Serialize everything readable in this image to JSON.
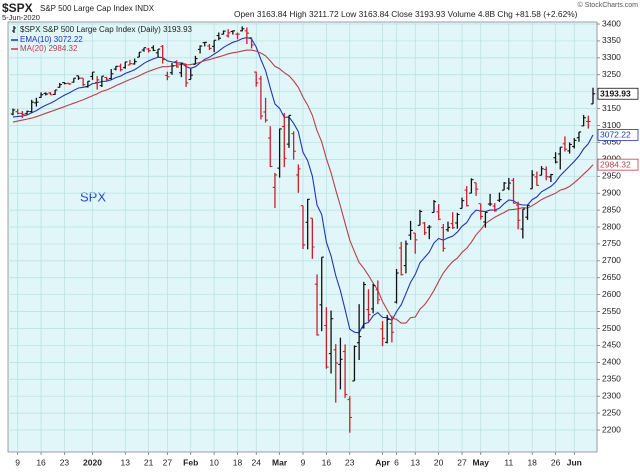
{
  "chart_data": {
    "type": "ohlc",
    "symbol": "$SPX",
    "subtitle": "S&P 500 Large Cap Index  INDX",
    "date": "5-Jun-2020",
    "quote": "Open 3163.84 High 3211.72 Low 3163.84 Close 3193.93 Volume 4.8B Chg +81.58 (+2.62%)",
    "credit": "© StockCharts.com",
    "annotation": "SPX",
    "price_name": "$SPX S&P 500 Large Cap Index (Daily)",
    "up_color": "#111111",
    "down_color": "#cc1f2a",
    "background": "#e0f6f8",
    "grid": true,
    "x": [
      "2019-12-06",
      "2019-12-09",
      "2019-12-10",
      "2019-12-11",
      "2019-12-12",
      "2019-12-13",
      "2019-12-16",
      "2019-12-17",
      "2019-12-18",
      "2019-12-19",
      "2019-12-20",
      "2019-12-23",
      "2019-12-24",
      "2019-12-26",
      "2019-12-27",
      "2019-12-30",
      "2019-12-31",
      "2020-01-02",
      "2020-01-03",
      "2020-01-06",
      "2020-01-07",
      "2020-01-08",
      "2020-01-09",
      "2020-01-10",
      "2020-01-13",
      "2020-01-14",
      "2020-01-15",
      "2020-01-16",
      "2020-01-17",
      "2020-01-21",
      "2020-01-22",
      "2020-01-23",
      "2020-01-24",
      "2020-01-27",
      "2020-01-28",
      "2020-01-29",
      "2020-01-30",
      "2020-01-31",
      "2020-02-03",
      "2020-02-04",
      "2020-02-05",
      "2020-02-06",
      "2020-02-07",
      "2020-02-10",
      "2020-02-11",
      "2020-02-12",
      "2020-02-13",
      "2020-02-14",
      "2020-02-18",
      "2020-02-19",
      "2020-02-20",
      "2020-02-21",
      "2020-02-24",
      "2020-02-25",
      "2020-02-26",
      "2020-02-27",
      "2020-02-28",
      "2020-03-02",
      "2020-03-03",
      "2020-03-04",
      "2020-03-05",
      "2020-03-06",
      "2020-03-09",
      "2020-03-10",
      "2020-03-11",
      "2020-03-12",
      "2020-03-13",
      "2020-03-16",
      "2020-03-17",
      "2020-03-18",
      "2020-03-19",
      "2020-03-20",
      "2020-03-23",
      "2020-03-24",
      "2020-03-25",
      "2020-03-26",
      "2020-03-27",
      "2020-03-30",
      "2020-03-31",
      "2020-04-01",
      "2020-04-02",
      "2020-04-03",
      "2020-04-06",
      "2020-04-07",
      "2020-04-08",
      "2020-04-09",
      "2020-04-13",
      "2020-04-14",
      "2020-04-15",
      "2020-04-16",
      "2020-04-17",
      "2020-04-20",
      "2020-04-21",
      "2020-04-22",
      "2020-04-23",
      "2020-04-24",
      "2020-04-27",
      "2020-04-28",
      "2020-04-29",
      "2020-04-30",
      "2020-05-01",
      "2020-05-04",
      "2020-05-05",
      "2020-05-06",
      "2020-05-07",
      "2020-05-08",
      "2020-05-11",
      "2020-05-12",
      "2020-05-13",
      "2020-05-14",
      "2020-05-15",
      "2020-05-18",
      "2020-05-19",
      "2020-05-20",
      "2020-05-21",
      "2020-05-22",
      "2020-05-26",
      "2020-05-27",
      "2020-05-28",
      "2020-05-29",
      "2020-06-01",
      "2020-06-02",
      "2020-06-03",
      "2020-06-04",
      "2020-06-05"
    ],
    "open": [
      3134,
      3141,
      3136,
      3135,
      3141,
      3167,
      3183,
      3195,
      3196,
      3192,
      3213,
      3227,
      3225,
      3228,
      3247,
      3240,
      3215,
      3245,
      3227,
      3218,
      3242,
      3239,
      3267,
      3275,
      3271,
      3279,
      3282,
      3302,
      3323,
      3326,
      3330,
      3315,
      3334,
      3248,
      3256,
      3289,
      3256,
      3282,
      3236,
      3281,
      3325,
      3345,
      3335,
      3334,
      3366,
      3370,
      3365,
      3378,
      3370,
      3380,
      3380,
      3360,
      3258,
      3238,
      3140,
      3063,
      2917,
      2974,
      3097,
      3045,
      3076,
      2954,
      2863,
      2814,
      2826,
      2631,
      2570,
      2509,
      2426,
      2437,
      2394,
      2432,
      2290,
      2345,
      2458,
      2502,
      2556,
      2558,
      2614,
      2499,
      2459,
      2515,
      2578,
      2738,
      2686,
      2776,
      2782,
      2805,
      2812,
      2799,
      2843,
      2845,
      2798,
      2792,
      2810,
      2812,
      2855,
      2909,
      2900,
      2931,
      2869,
      2815,
      2868,
      2862,
      2879,
      2909,
      2915,
      2938,
      2865,
      2794,
      2829,
      2913,
      2948,
      2953,
      2970,
      2948,
      3005,
      3016,
      3046,
      3025,
      3038,
      3064,
      3099,
      3112,
      3163.84
    ],
    "high": [
      3150,
      3149,
      3143,
      3144,
      3176,
      3182,
      3198,
      3198,
      3199,
      3205,
      3226,
      3228,
      3226,
      3240,
      3247,
      3240,
      3231,
      3258,
      3246,
      3246,
      3244,
      3267,
      3276,
      3283,
      3288,
      3294,
      3298,
      3317,
      3330,
      3329,
      3337,
      3326,
      3338,
      3259,
      3285,
      3293,
      3286,
      3282,
      3268,
      3306,
      3337,
      3347,
      3341,
      3352,
      3375,
      3381,
      3385,
      3381,
      3375,
      3393,
      3390,
      3360,
      3259,
      3247,
      3182,
      3098,
      2960,
      3091,
      3137,
      3130,
      3083,
      2985,
      2863,
      2883,
      2826,
      2660,
      2711,
      2563,
      2553,
      2454,
      2473,
      2453,
      2300,
      2450,
      2572,
      2638,
      2616,
      2632,
      2642,
      2522,
      2540,
      2538,
      2676,
      2756,
      2760,
      2818,
      2782,
      2851,
      2815,
      2806,
      2880,
      2868,
      2809,
      2816,
      2844,
      2842,
      2887,
      2921,
      2944,
      2931,
      2869,
      2844,
      2898,
      2871,
      2902,
      2933,
      2945,
      2945,
      2875,
      2853,
      2865,
      2968,
      2964,
      2980,
      2979,
      2957,
      3021,
      3036,
      3068,
      3050,
      3063,
      3081,
      3131,
      3129,
      3211.72
    ],
    "low": [
      3130,
      3133,
      3122,
      3133,
      3138,
      3156,
      3182,
      3189,
      3190,
      3191,
      3212,
      3222,
      3220,
      3227,
      3235,
      3216,
      3212,
      3235,
      3206,
      3214,
      3233,
      3236,
      3263,
      3260,
      3268,
      3278,
      3280,
      3302,
      3318,
      3316,
      3320,
      3302,
      3283,
      3234,
      3250,
      3271,
      3243,
      3214,
      3236,
      3281,
      3313,
      3334,
      3323,
      3317,
      3352,
      3369,
      3360,
      3369,
      3355,
      3378,
      3341,
      3328,
      3215,
      3118,
      3109,
      2977,
      2856,
      2946,
      2977,
      3034,
      2999,
      2901,
      2735,
      2734,
      2706,
      2479,
      2492,
      2381,
      2367,
      2281,
      2320,
      2295,
      2192,
      2345,
      2407,
      2500,
      2521,
      2545,
      2572,
      2448,
      2456,
      2459,
      2574,
      2657,
      2663,
      2762,
      2721,
      2805,
      2776,
      2764,
      2843,
      2821,
      2727,
      2786,
      2794,
      2795,
      2855,
      2861,
      2900,
      2892,
      2822,
      2798,
      2862,
      2845,
      2874,
      2909,
      2909,
      2870,
      2793,
      2766,
      2821,
      2913,
      2922,
      2953,
      2938,
      2933,
      2988,
      2970,
      3023,
      3017,
      3032,
      3052,
      3098,
      3091,
      3163.84
    ],
    "close": [
      3146,
      3136,
      3133,
      3142,
      3169,
      3169,
      3191,
      3193,
      3191,
      3205,
      3221,
      3224,
      3223,
      3240,
      3240,
      3221,
      3231,
      3258,
      3235,
      3246,
      3237,
      3253,
      3275,
      3265,
      3288,
      3283,
      3289,
      3317,
      3330,
      3321,
      3322,
      3326,
      3295,
      3244,
      3276,
      3273,
      3284,
      3226,
      3249,
      3298,
      3335,
      3346,
      3328,
      3352,
      3358,
      3379,
      3374,
      3380,
      3370,
      3386,
      3373,
      3338,
      3226,
      3128,
      3116,
      2979,
      2954,
      3090,
      3003,
      3130,
      3024,
      2972,
      2747,
      2882,
      2741,
      2481,
      2711,
      2386,
      2529,
      2398,
      2409,
      2305,
      2237,
      2447,
      2476,
      2630,
      2541,
      2627,
      2585,
      2471,
      2527,
      2489,
      2664,
      2659,
      2750,
      2790,
      2762,
      2846,
      2783,
      2800,
      2875,
      2823,
      2737,
      2799,
      2798,
      2837,
      2878,
      2863,
      2940,
      2912,
      2831,
      2843,
      2868,
      2848,
      2881,
      2930,
      2930,
      2870,
      2820,
      2853,
      2864,
      2954,
      2923,
      2972,
      2949,
      2955,
      2992,
      3036,
      3030,
      3044,
      3056,
      3081,
      3123,
      3112,
      3193.93
    ],
    "series": [
      {
        "name": "EMA(10)",
        "color": "#2236b8",
        "values": [
          3125,
          3127,
          3128,
          3131,
          3138,
          3144,
          3153,
          3160,
          3166,
          3173,
          3182,
          3190,
          3196,
          3204,
          3211,
          3213,
          3216,
          3224,
          3226,
          3230,
          3231,
          3235,
          3242,
          3246,
          3254,
          3259,
          3265,
          3274,
          3284,
          3291,
          3297,
          3302,
          3301,
          3291,
          3288,
          3285,
          3285,
          3274,
          3269,
          3274,
          3285,
          3296,
          3302,
          3311,
          3320,
          3331,
          3339,
          3346,
          3350,
          3357,
          3360,
          3356,
          3332,
          3295,
          3262,
          3211,
          3164,
          3151,
          3124,
          3125,
          3107,
          3082,
          3021,
          2996,
          2950,
          2865,
          2837,
          2755,
          2714,
          2657,
          2612,
          2556,
          2498,
          2489,
          2487,
          2513,
          2518,
          2538,
          2547,
          2533,
          2532,
          2524,
          2550,
          2570,
          2603,
          2637,
          2660,
          2694,
          2710,
          2726,
          2753,
          2766,
          2761,
          2768,
          2773,
          2785,
          2802,
          2813,
          2836,
          2850,
          2847,
          2846,
          2850,
          2850,
          2856,
          2869,
          2880,
          2878,
          2868,
          2865,
          2865,
          2881,
          2889,
          2904,
          2912,
          2920,
          2933,
          2952,
          2966,
          2980,
          2994,
          3010,
          3031,
          3046,
          3072.22
        ]
      },
      {
        "name": "MA(20)",
        "color": "#b8404a",
        "values": [
          3110,
          3113,
          3116,
          3119,
          3122,
          3126,
          3131,
          3136,
          3141,
          3146,
          3151,
          3156,
          3161,
          3166,
          3171,
          3176,
          3182,
          3188,
          3194,
          3201,
          3205,
          3211,
          3218,
          3224,
          3230,
          3236,
          3241,
          3247,
          3254,
          3260,
          3265,
          3270,
          3274,
          3274,
          3276,
          3278,
          3281,
          3279,
          3280,
          3283,
          3287,
          3292,
          3295,
          3299,
          3303,
          3307,
          3312,
          3315,
          3317,
          3320,
          3323,
          3323,
          3320,
          3314,
          3306,
          3291,
          3275,
          3268,
          3256,
          3247,
          3232,
          3213,
          3184,
          3160,
          3130,
          3085,
          3052,
          3002,
          2960,
          2910,
          2862,
          2811,
          2761,
          2727,
          2695,
          2678,
          2657,
          2634,
          2613,
          2580,
          2555,
          2531,
          2527,
          2516,
          2516,
          2532,
          2534,
          2557,
          2570,
          2590,
          2613,
          2639,
          2664,
          2682,
          2698,
          2708,
          2725,
          2737,
          2755,
          2777,
          2792,
          2810,
          2820,
          2829,
          2836,
          2843,
          2851,
          2852,
          2854,
          2857,
          2856,
          2863,
          2872,
          2881,
          2888,
          2894,
          2900,
          2909,
          2913,
          2920,
          2931,
          2943,
          2956,
          2969,
          2984.32
        ]
      }
    ],
    "ylim": [
      2135,
      3406
    ],
    "yticks": [
      2200,
      2250,
      2300,
      2350,
      2400,
      2450,
      2500,
      2550,
      2600,
      2650,
      2700,
      2750,
      2800,
      2850,
      2900,
      2950,
      3000,
      3050,
      3100,
      3150,
      3200,
      3250,
      3300,
      3350,
      3400
    ],
    "xticks": [
      {
        "value": "2019-12-09",
        "label": "9"
      },
      {
        "value": "2019-12-16",
        "label": "16"
      },
      {
        "value": "2019-12-23",
        "label": "23"
      },
      {
        "value": "2020-01-02",
        "label": "2020"
      },
      {
        "value": "2020-01-13",
        "label": "13"
      },
      {
        "value": "2020-01-21",
        "label": "21"
      },
      {
        "value": "2020-01-27",
        "label": "27"
      },
      {
        "value": "2020-02-03",
        "label": "Feb"
      },
      {
        "value": "2020-02-10",
        "label": "10"
      },
      {
        "value": "2020-02-18",
        "label": "18"
      },
      {
        "value": "2020-02-24",
        "label": "24"
      },
      {
        "value": "2020-03-02",
        "label": "Mar"
      },
      {
        "value": "2020-03-09",
        "label": "9"
      },
      {
        "value": "2020-03-16",
        "label": "16"
      },
      {
        "value": "2020-03-23",
        "label": "23"
      },
      {
        "value": "2020-04-01",
        "label": "Apr"
      },
      {
        "value": "2020-04-06",
        "label": "6"
      },
      {
        "value": "2020-04-13",
        "label": "13"
      },
      {
        "value": "2020-04-20",
        "label": "20"
      },
      {
        "value": "2020-04-27",
        "label": "27"
      },
      {
        "value": "2020-05-01",
        "label": "May"
      },
      {
        "value": "2020-05-11",
        "label": "11"
      },
      {
        "value": "2020-05-18",
        "label": "18"
      },
      {
        "value": "2020-05-26",
        "label": "26"
      },
      {
        "value": "2020-06-01",
        "label": "Jun"
      }
    ]
  }
}
